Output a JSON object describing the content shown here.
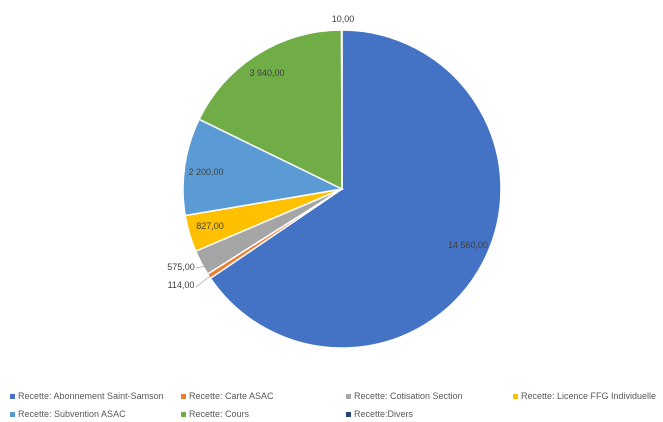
{
  "chart_data": {
    "type": "pie",
    "title": "",
    "slices": [
      {
        "name": "Recette: Abonnement Saint-Samson",
        "value": 14560.0,
        "label": "14 560,00",
        "color": "#4472C4"
      },
      {
        "name": "Recette: Carte ASAC",
        "value": 114.0,
        "label": "114,00",
        "color": "#ED7D31"
      },
      {
        "name": "Recette: Cotisation Section",
        "value": 575.0,
        "label": "575,00",
        "color": "#A5A5A5"
      },
      {
        "name": "Recette: Licence FFG Individuelle",
        "value": 827.0,
        "label": "827,00",
        "color": "#FFC000"
      },
      {
        "name": "Recette: Subvention ASAC",
        "value": 2200.0,
        "label": "2 200,00",
        "color": "#5B9BD5"
      },
      {
        "name": "Recette: Cours",
        "value": 3940.0,
        "label": "3 940,00",
        "color": "#70AD47"
      },
      {
        "name": "Recette:Divers",
        "value": 10.0,
        "label": "10,00",
        "color": "#264478"
      }
    ],
    "legend_position": "bottom"
  }
}
